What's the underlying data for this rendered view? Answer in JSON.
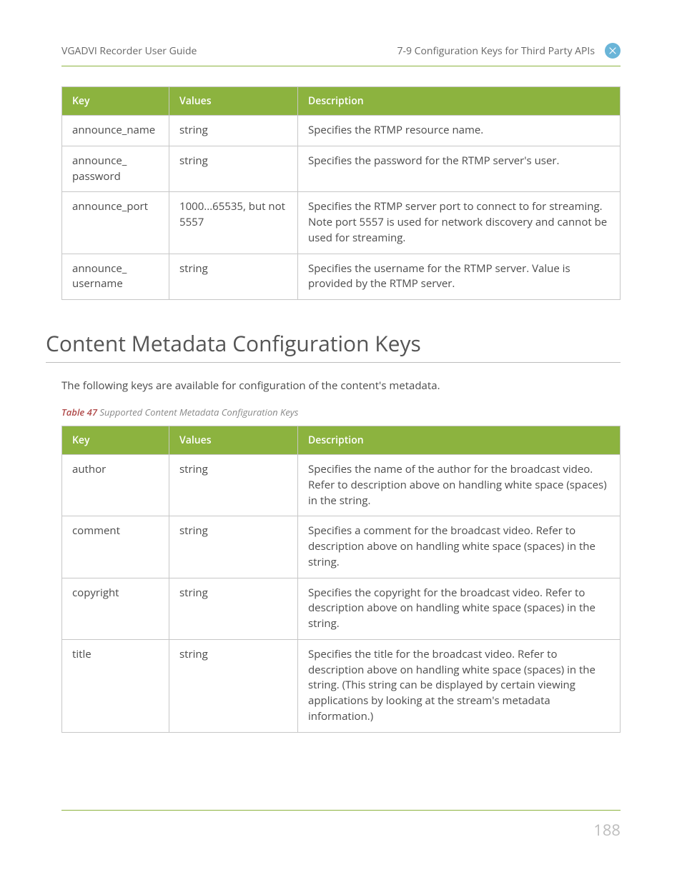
{
  "header": {
    "left": "VGADVI Recorder User Guide",
    "right": "7-9 Configuration Keys for Third Party APIs"
  },
  "table1": {
    "headers": [
      "Key",
      "Values",
      "Description"
    ],
    "rows": [
      [
        "announce_name",
        "string",
        "Specifies the RTMP resource name."
      ],
      [
        "announce_ password",
        "string",
        "Specifies the password for the RTMP server's user."
      ],
      [
        "announce_port",
        "1000...65535, but not 5557",
        "Specifies the RTMP server port to connect to for streaming. Note port 5557 is used for network discovery and cannot be used for streaming."
      ],
      [
        "announce_ username",
        "string",
        "Specifies the username for the RTMP server. Value is provided by the RTMP server."
      ]
    ]
  },
  "section_title": "Content Metadata Configuration Keys",
  "intro": "The following keys are available for configuration of the content's metadata.",
  "caption_bold": "Table 47",
  "caption_rest": " Supported Content Metadata Configuration Keys",
  "table2": {
    "headers": [
      "Key",
      "Values",
      "Description"
    ],
    "rows": [
      [
        "author",
        "string",
        "Specifies the name of the author for the broadcast video. Refer to description above on handling white space (spaces) in the string."
      ],
      [
        "comment",
        "string",
        "Specifies a comment for the broadcast video. Refer to description above on handling white space (spaces) in the string."
      ],
      [
        "copyright",
        "string",
        "Specifies the copyright for the broadcast video. Refer to description above on handling white space (spaces) in the string."
      ],
      [
        "title",
        "string",
        "Specifies the title for the broadcast video. Refer to description above on handling white space (spaces) in the string. (This string can be displayed by certain viewing applications by looking at the stream's metadata information.)"
      ]
    ]
  },
  "page_number": "188"
}
